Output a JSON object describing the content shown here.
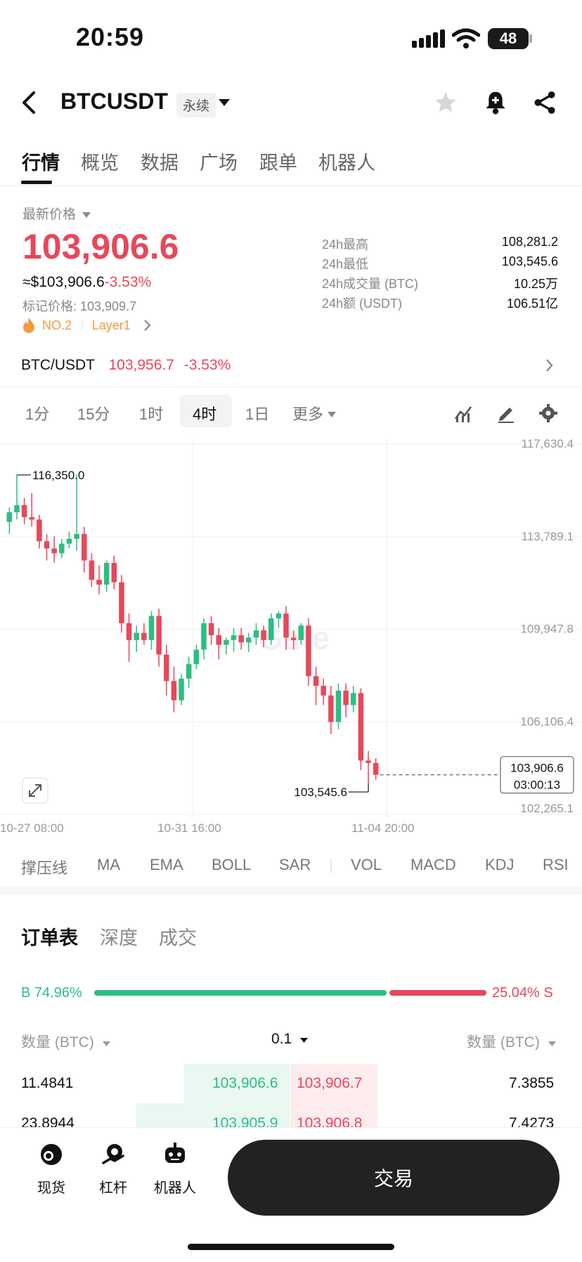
{
  "status": {
    "time": "20:59",
    "battery": "48"
  },
  "header": {
    "symbol": "BTCUSDT",
    "contract_type": "永续"
  },
  "tabs": [
    "行情",
    "概览",
    "数据",
    "广场",
    "跟单",
    "机器人"
  ],
  "price_panel": {
    "label": "最新价格",
    "last_price": "103,906.6",
    "usd_equiv": "≈$103,906.6",
    "change_pct": "-3.53%",
    "mark_price": "标记价格: 103,909.7",
    "rank": "NO.2",
    "tag": "Layer1"
  },
  "stats_24h": [
    {
      "label": "24h最高",
      "value": "108,281.2"
    },
    {
      "label": "24h最低",
      "value": "103,545.6"
    },
    {
      "label": "24h成交量 (BTC)",
      "value": "10.25万"
    },
    {
      "label": "24h额 (USDT)",
      "value": "106.51亿"
    }
  ],
  "spot_row": {
    "pair": "BTC/USDT",
    "price": "103,956.7",
    "change": "-3.53%"
  },
  "timeframes": [
    "1分",
    "15分",
    "1时",
    "4时",
    "1日",
    "更多"
  ],
  "chart_data": {
    "type": "candlestick",
    "y_ticks": [
      "117,630.4",
      "113,789.1",
      "109,947.8",
      "106,106.4",
      "102,265.1"
    ],
    "ylim": [
      102265.1,
      117630.4
    ],
    "x_ticks": [
      "10-27 08:00",
      "10-31 16:00",
      "11-04 20:00"
    ],
    "high_marker": "116,350.0",
    "low_marker": "103,545.6",
    "current_price_label": "103,906.6",
    "countdown": "03:00:13",
    "watermark": "Gate",
    "candles": [
      [
        114400,
        115000,
        113900,
        114800
      ],
      [
        114800,
        116350,
        114500,
        115100
      ],
      [
        115100,
        115400,
        114300,
        114600
      ],
      [
        114600,
        115600,
        114200,
        114500
      ],
      [
        114500,
        114700,
        113300,
        113600
      ],
      [
        113600,
        113900,
        112800,
        113300
      ],
      [
        113300,
        113800,
        112700,
        113100
      ],
      [
        113100,
        113700,
        112900,
        113500
      ],
      [
        113500,
        114000,
        113300,
        113700
      ],
      [
        113700,
        116350,
        113200,
        113900
      ],
      [
        113900,
        114200,
        112300,
        112800
      ],
      [
        112800,
        113100,
        111700,
        112000
      ],
      [
        112000,
        112600,
        111400,
        111800
      ],
      [
        111800,
        112800,
        111500,
        112700
      ],
      [
        112700,
        113000,
        111600,
        111900
      ],
      [
        111900,
        112200,
        109800,
        110200
      ],
      [
        110200,
        110600,
        108600,
        109500
      ],
      [
        109500,
        110100,
        109000,
        109800
      ],
      [
        109800,
        110200,
        109300,
        109500
      ],
      [
        109500,
        110700,
        109100,
        110500
      ],
      [
        110500,
        110800,
        108400,
        108900
      ],
      [
        108900,
        109300,
        107200,
        107800
      ],
      [
        107800,
        108400,
        106500,
        107000
      ],
      [
        107000,
        108100,
        106800,
        107900
      ],
      [
        107900,
        108800,
        107500,
        108500
      ],
      [
        108500,
        109300,
        108300,
        109100
      ],
      [
        109100,
        110400,
        108700,
        110200
      ],
      [
        110200,
        110500,
        109300,
        109700
      ],
      [
        109700,
        110000,
        108700,
        109300
      ],
      [
        109300,
        109600,
        108900,
        109500
      ],
      [
        109500,
        110000,
        109000,
        109700
      ],
      [
        109700,
        110000,
        109100,
        109400
      ],
      [
        109400,
        109800,
        109000,
        109600
      ],
      [
        109600,
        110200,
        109300,
        109900
      ],
      [
        109900,
        110100,
        109200,
        109500
      ],
      [
        109500,
        110600,
        109300,
        110400
      ],
      [
        110400,
        110700,
        110000,
        110600
      ],
      [
        110600,
        110900,
        109100,
        109600
      ],
      [
        109600,
        109900,
        109100,
        109500
      ],
      [
        109500,
        110200,
        109300,
        110100
      ],
      [
        110100,
        110400,
        107600,
        108000
      ],
      [
        108000,
        108400,
        106800,
        107600
      ],
      [
        107600,
        107900,
        106800,
        107200
      ],
      [
        107200,
        107600,
        105600,
        106100
      ],
      [
        106100,
        107700,
        105800,
        107400
      ],
      [
        107400,
        107700,
        106300,
        106800
      ],
      [
        106800,
        107600,
        106500,
        107300
      ],
      [
        107300,
        107500,
        104100,
        104500
      ],
      [
        104500,
        104900,
        103545.6,
        104400
      ],
      [
        104400,
        104600,
        103700,
        103906.6
      ]
    ]
  },
  "indicators": [
    "撑压线",
    "MA",
    "EMA",
    "BOLL",
    "SAR",
    "VOL",
    "MACD",
    "KDJ",
    "RSI"
  ],
  "orderbook": {
    "tabs": [
      "订单表",
      "深度",
      "成交"
    ],
    "buy_ratio": 0.7496,
    "buy_label": "B 74.96%",
    "sell_label": "25.04% S",
    "qty_header_left": "数量 (BTC)",
    "precision": "0.1",
    "qty_header_right": "数量 (BTC)",
    "rows": [
      {
        "bid_qty": "11.4841",
        "bid": "103,906.6",
        "ask": "103,906.7",
        "ask_qty": "7.3855"
      },
      {
        "bid_qty": "23.8944",
        "bid": "103,905.9",
        "ask": "103,906.8",
        "ask_qty": "7.4273"
      }
    ]
  },
  "bottom_nav": {
    "spot": "现货",
    "leverage": "杠杆",
    "bot": "机器人",
    "trade": "交易"
  }
}
